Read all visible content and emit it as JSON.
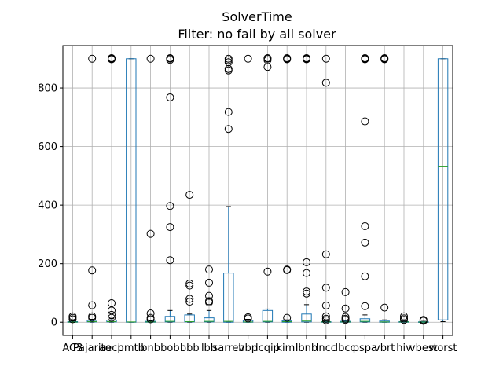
{
  "chart_data": {
    "type": "box",
    "title": "SolverTime",
    "subtitle": "Filter: no fail by all solver",
    "xlabel": "",
    "ylabel": "",
    "ylim": [
      -45,
      945
    ],
    "yticks": [
      0,
      200,
      400,
      600,
      800
    ],
    "grid": true,
    "categories": [
      "AC3",
      "Pajarito",
      "aecp",
      "bmtb",
      "bnb",
      "bob",
      "bbb",
      "lbb",
      "sarrev",
      "bbp",
      "lcqip",
      "kimi",
      "lbnb",
      "lncc",
      "lbcc",
      "pspa",
      "vbrt",
      "hiv",
      "vbest",
      "worst"
    ],
    "tick_labels": [
      "AC3",
      "Pajarito",
      "aecp",
      "bmtb",
      "bnb",
      "bob",
      "bbb",
      "lbb",
      "sarrev",
      "bbp",
      "lcqip",
      "kimi",
      "lbnb",
      "lncc",
      "lbcc",
      "pspa",
      "vbrt",
      "hiv",
      "vbest",
      "worst"
    ],
    "boxes": [
      {
        "q1": 0,
        "median": 0.5,
        "q3": 2,
        "whisker_low": 0,
        "whisker_high": 5,
        "outliers": [
          10,
          15,
          20
        ]
      },
      {
        "q1": 1,
        "median": 2,
        "q3": 6,
        "whisker_low": 0,
        "whisker_high": 10,
        "outliers": [
          15,
          20,
          58,
          177,
          900
        ]
      },
      {
        "q1": 1,
        "median": 2,
        "q3": 7,
        "whisker_low": 0,
        "whisker_high": 12,
        "outliers": [
          15,
          25,
          40,
          65,
          898,
          900,
          902
        ]
      },
      {
        "q1": 0,
        "median": 1,
        "q3": 900,
        "whisker_low": 0,
        "whisker_high": 900,
        "outliers": []
      },
      {
        "q1": 0,
        "median": 1,
        "q3": 3,
        "whisker_low": 0,
        "whisker_high": 6,
        "outliers": [
          10,
          15,
          30,
          302,
          900
        ]
      },
      {
        "q1": 1,
        "median": 3,
        "q3": 20,
        "whisker_low": 0,
        "whisker_high": 40,
        "outliers": [
          212,
          325,
          397,
          768,
          896,
          900,
          902
        ]
      },
      {
        "q1": 1,
        "median": 2,
        "q3": 25,
        "whisker_low": 0,
        "whisker_high": 28,
        "outliers": [
          70,
          80,
          125,
          132,
          435
        ]
      },
      {
        "q1": 1,
        "median": 3,
        "q3": 15,
        "whisker_low": 0,
        "whisker_high": 40,
        "outliers": [
          68,
          72,
          90,
          135,
          180
        ]
      },
      {
        "q1": 0,
        "median": 3,
        "q3": 168,
        "whisker_low": 0,
        "whisker_high": 395,
        "outliers": [
          660,
          718,
          860,
          865,
          888,
          895,
          900
        ]
      },
      {
        "q1": 0,
        "median": 1,
        "q3": 6,
        "whisker_low": 0,
        "whisker_high": 10,
        "outliers": [
          13,
          17,
          900
        ]
      },
      {
        "q1": 1,
        "median": 3,
        "q3": 40,
        "whisker_low": 0,
        "whisker_high": 45,
        "outliers": [
          173,
          872,
          895,
          900,
          902
        ]
      },
      {
        "q1": 0,
        "median": 2,
        "q3": 5,
        "whisker_low": 0,
        "whisker_high": 8,
        "outliers": [
          15,
          178,
          180,
          898,
          900,
          902
        ]
      },
      {
        "q1": 1,
        "median": 4,
        "q3": 28,
        "whisker_low": 0,
        "whisker_high": 60,
        "outliers": [
          98,
          105,
          168,
          205,
          898,
          900,
          902
        ]
      },
      {
        "q1": 0,
        "median": 1,
        "q3": 2,
        "whisker_low": 0,
        "whisker_high": 5,
        "outliers": [
          7,
          12,
          20,
          57,
          118,
          232,
          818,
          900
        ]
      },
      {
        "q1": 0,
        "median": 1,
        "q3": 3,
        "whisker_low": 0,
        "whisker_high": 6,
        "outliers": [
          8,
          12,
          18,
          47,
          103
        ]
      },
      {
        "q1": 1,
        "median": 3,
        "q3": 12,
        "whisker_low": 0,
        "whisker_high": 25,
        "outliers": [
          55,
          157,
          272,
          328,
          686,
          898,
          900,
          902
        ]
      },
      {
        "q1": 0,
        "median": 1,
        "q3": 4,
        "whisker_low": 0,
        "whisker_high": 8,
        "outliers": [
          50,
          898,
          900,
          902
        ]
      },
      {
        "q1": 0,
        "median": 1,
        "q3": 2,
        "whisker_low": 0,
        "whisker_high": 5,
        "outliers": [
          8,
          13,
          20
        ]
      },
      {
        "q1": 0,
        "median": 0.5,
        "q3": 1.5,
        "whisker_low": 0,
        "whisker_high": 3,
        "outliers": [
          5,
          8
        ]
      },
      {
        "q1": 8,
        "median": 533,
        "q3": 900,
        "whisker_low": 2,
        "whisker_high": 900,
        "outliers": []
      }
    ]
  },
  "colors": {
    "box": "#1f77b4",
    "median": "#2ca02c",
    "grid": "#b0b0b0",
    "axis": "#000000",
    "outlier": "#000000"
  }
}
